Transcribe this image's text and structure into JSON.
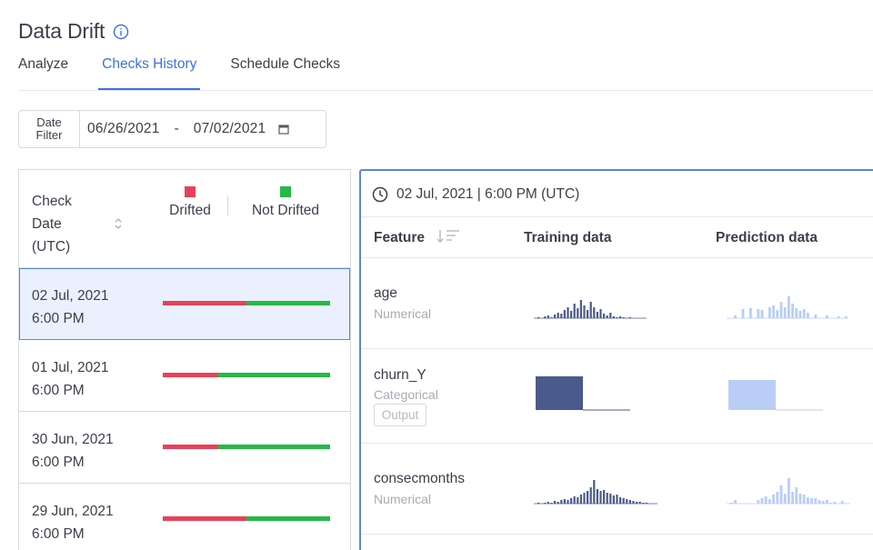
{
  "header": {
    "title": "Data Drift",
    "info_icon": "info-circle-icon"
  },
  "tabs": [
    {
      "label": "Analyze",
      "active": false
    },
    {
      "label": "Checks History",
      "active": true
    },
    {
      "label": "Schedule Checks",
      "active": false
    }
  ],
  "date_filter": {
    "label_line1": "Date",
    "label_line2": "Filter",
    "from": "06/26/2021",
    "separator": "-",
    "to": "07/02/2021",
    "icon": "calendar-icon"
  },
  "checks_list": {
    "header": {
      "line1": "Check",
      "line2": "Date",
      "line3": "(UTC)",
      "sort_icon": "sort-icon"
    },
    "legend": {
      "drifted_label": "Drifted",
      "not_drifted_label": "Not Drifted"
    },
    "colors": {
      "drifted": "#e8415a",
      "not_drifted": "#26b847",
      "accent": "#3f6fe6"
    },
    "rows": [
      {
        "date": "02 Jul, 2021",
        "time": "6:00 PM",
        "drifted_fraction": 0.5,
        "selected": true
      },
      {
        "date": "01 Jul, 2021",
        "time": "6:00 PM",
        "drifted_fraction": 0.33,
        "selected": false
      },
      {
        "date": "30 Jun, 2021",
        "time": "6:00 PM",
        "drifted_fraction": 0.33,
        "selected": false
      },
      {
        "date": "29 Jun, 2021",
        "time": "6:00 PM",
        "drifted_fraction": 0.5,
        "selected": false
      }
    ]
  },
  "detail": {
    "timestamp": "02 Jul, 2021 | 6:00 PM (UTC)",
    "clock_icon": "clock-icon",
    "columns": {
      "feature": "Feature",
      "training": "Training data",
      "prediction": "Prediction data"
    },
    "features": [
      {
        "name": "age",
        "type": "Numerical",
        "badge": ""
      },
      {
        "name": "churn_Y",
        "type": "Categorical",
        "badge": "Output"
      },
      {
        "name": "consecmonths",
        "type": "Numerical",
        "badge": ""
      }
    ],
    "training_color": "#4a5a8c",
    "prediction_color": "#b9cdf7"
  }
}
